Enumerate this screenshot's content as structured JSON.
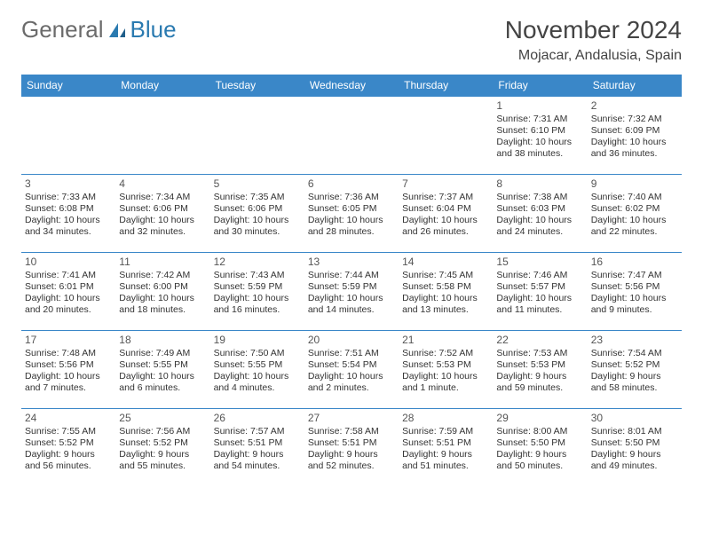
{
  "brand": {
    "part1": "General",
    "part2": "Blue"
  },
  "title": "November 2024",
  "location": "Mojacar, Andalusia, Spain",
  "colors": {
    "header_bg": "#3a87c8",
    "header_text": "#ffffff",
    "grid_line": "#3a87c8",
    "brand_gray": "#6b6b6b",
    "brand_blue": "#2a7ab0",
    "text": "#333333",
    "background": "#ffffff"
  },
  "day_headers": [
    "Sunday",
    "Monday",
    "Tuesday",
    "Wednesday",
    "Thursday",
    "Friday",
    "Saturday"
  ],
  "weeks": [
    [
      {
        "day": "",
        "lines": []
      },
      {
        "day": "",
        "lines": []
      },
      {
        "day": "",
        "lines": []
      },
      {
        "day": "",
        "lines": []
      },
      {
        "day": "",
        "lines": []
      },
      {
        "day": "1",
        "lines": [
          "Sunrise: 7:31 AM",
          "Sunset: 6:10 PM",
          "Daylight: 10 hours and 38 minutes."
        ]
      },
      {
        "day": "2",
        "lines": [
          "Sunrise: 7:32 AM",
          "Sunset: 6:09 PM",
          "Daylight: 10 hours and 36 minutes."
        ]
      }
    ],
    [
      {
        "day": "3",
        "lines": [
          "Sunrise: 7:33 AM",
          "Sunset: 6:08 PM",
          "Daylight: 10 hours and 34 minutes."
        ]
      },
      {
        "day": "4",
        "lines": [
          "Sunrise: 7:34 AM",
          "Sunset: 6:06 PM",
          "Daylight: 10 hours and 32 minutes."
        ]
      },
      {
        "day": "5",
        "lines": [
          "Sunrise: 7:35 AM",
          "Sunset: 6:06 PM",
          "Daylight: 10 hours and 30 minutes."
        ]
      },
      {
        "day": "6",
        "lines": [
          "Sunrise: 7:36 AM",
          "Sunset: 6:05 PM",
          "Daylight: 10 hours and 28 minutes."
        ]
      },
      {
        "day": "7",
        "lines": [
          "Sunrise: 7:37 AM",
          "Sunset: 6:04 PM",
          "Daylight: 10 hours and 26 minutes."
        ]
      },
      {
        "day": "8",
        "lines": [
          "Sunrise: 7:38 AM",
          "Sunset: 6:03 PM",
          "Daylight: 10 hours and 24 minutes."
        ]
      },
      {
        "day": "9",
        "lines": [
          "Sunrise: 7:40 AM",
          "Sunset: 6:02 PM",
          "Daylight: 10 hours and 22 minutes."
        ]
      }
    ],
    [
      {
        "day": "10",
        "lines": [
          "Sunrise: 7:41 AM",
          "Sunset: 6:01 PM",
          "Daylight: 10 hours and 20 minutes."
        ]
      },
      {
        "day": "11",
        "lines": [
          "Sunrise: 7:42 AM",
          "Sunset: 6:00 PM",
          "Daylight: 10 hours and 18 minutes."
        ]
      },
      {
        "day": "12",
        "lines": [
          "Sunrise: 7:43 AM",
          "Sunset: 5:59 PM",
          "Daylight: 10 hours and 16 minutes."
        ]
      },
      {
        "day": "13",
        "lines": [
          "Sunrise: 7:44 AM",
          "Sunset: 5:59 PM",
          "Daylight: 10 hours and 14 minutes."
        ]
      },
      {
        "day": "14",
        "lines": [
          "Sunrise: 7:45 AM",
          "Sunset: 5:58 PM",
          "Daylight: 10 hours and 13 minutes."
        ]
      },
      {
        "day": "15",
        "lines": [
          "Sunrise: 7:46 AM",
          "Sunset: 5:57 PM",
          "Daylight: 10 hours and 11 minutes."
        ]
      },
      {
        "day": "16",
        "lines": [
          "Sunrise: 7:47 AM",
          "Sunset: 5:56 PM",
          "Daylight: 10 hours and 9 minutes."
        ]
      }
    ],
    [
      {
        "day": "17",
        "lines": [
          "Sunrise: 7:48 AM",
          "Sunset: 5:56 PM",
          "Daylight: 10 hours and 7 minutes."
        ]
      },
      {
        "day": "18",
        "lines": [
          "Sunrise: 7:49 AM",
          "Sunset: 5:55 PM",
          "Daylight: 10 hours and 6 minutes."
        ]
      },
      {
        "day": "19",
        "lines": [
          "Sunrise: 7:50 AM",
          "Sunset: 5:55 PM",
          "Daylight: 10 hours and 4 minutes."
        ]
      },
      {
        "day": "20",
        "lines": [
          "Sunrise: 7:51 AM",
          "Sunset: 5:54 PM",
          "Daylight: 10 hours and 2 minutes."
        ]
      },
      {
        "day": "21",
        "lines": [
          "Sunrise: 7:52 AM",
          "Sunset: 5:53 PM",
          "Daylight: 10 hours and 1 minute."
        ]
      },
      {
        "day": "22",
        "lines": [
          "Sunrise: 7:53 AM",
          "Sunset: 5:53 PM",
          "Daylight: 9 hours and 59 minutes."
        ]
      },
      {
        "day": "23",
        "lines": [
          "Sunrise: 7:54 AM",
          "Sunset: 5:52 PM",
          "Daylight: 9 hours and 58 minutes."
        ]
      }
    ],
    [
      {
        "day": "24",
        "lines": [
          "Sunrise: 7:55 AM",
          "Sunset: 5:52 PM",
          "Daylight: 9 hours and 56 minutes."
        ]
      },
      {
        "day": "25",
        "lines": [
          "Sunrise: 7:56 AM",
          "Sunset: 5:52 PM",
          "Daylight: 9 hours and 55 minutes."
        ]
      },
      {
        "day": "26",
        "lines": [
          "Sunrise: 7:57 AM",
          "Sunset: 5:51 PM",
          "Daylight: 9 hours and 54 minutes."
        ]
      },
      {
        "day": "27",
        "lines": [
          "Sunrise: 7:58 AM",
          "Sunset: 5:51 PM",
          "Daylight: 9 hours and 52 minutes."
        ]
      },
      {
        "day": "28",
        "lines": [
          "Sunrise: 7:59 AM",
          "Sunset: 5:51 PM",
          "Daylight: 9 hours and 51 minutes."
        ]
      },
      {
        "day": "29",
        "lines": [
          "Sunrise: 8:00 AM",
          "Sunset: 5:50 PM",
          "Daylight: 9 hours and 50 minutes."
        ]
      },
      {
        "day": "30",
        "lines": [
          "Sunrise: 8:01 AM",
          "Sunset: 5:50 PM",
          "Daylight: 9 hours and 49 minutes."
        ]
      }
    ]
  ]
}
